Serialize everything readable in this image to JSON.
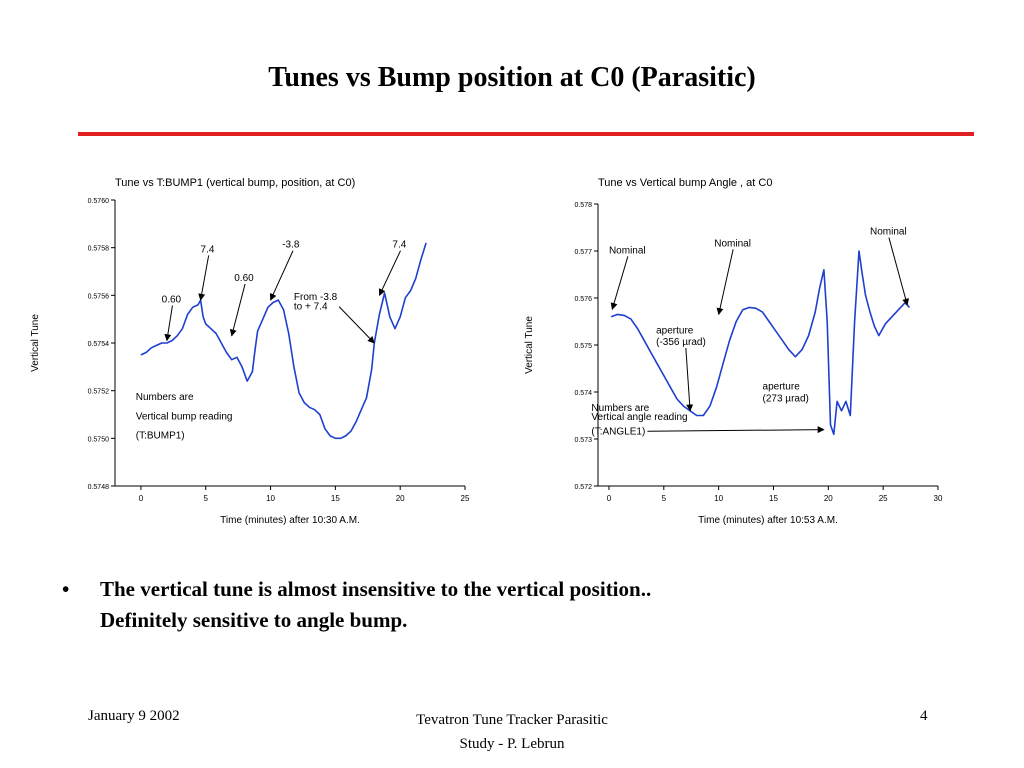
{
  "slide": {
    "title": "Tunes vs Bump position at C0 (Parasitic)",
    "accent_color": "#e02020",
    "bullet": {
      "symbol": "•",
      "line1": "The vertical tune is almost insensitive to the vertical position..",
      "line2": "Definitely sensitive to angle bump."
    },
    "footer": {
      "date": "January  9  2002",
      "center_line1": "Tevatron Tune Tracker Parasitic",
      "center_line2": "Study  - P. Lebrun",
      "page": "4"
    }
  },
  "chart_data": [
    {
      "type": "line",
      "title": "Tune vs T:BUMP1 (vertical bump, position, at C0)",
      "xlabel": "Time (minutes) after 10:30 A.M.",
      "ylabel": "Vertical Tune",
      "xlim": [
        -2,
        25
      ],
      "ylim": [
        0.5748,
        0.576
      ],
      "xticks": [
        "0",
        "5",
        "10",
        "15",
        "20",
        "25"
      ],
      "xtick_values": [
        0,
        5,
        10,
        15,
        20,
        25
      ],
      "yticks": [
        "0.5760",
        "0.5758",
        "0.5756",
        "0.5754",
        "0.5752",
        "0.5750",
        "0.5748"
      ],
      "ytick_values": [
        0.576,
        0.5758,
        0.5756,
        0.5754,
        0.5752,
        0.575,
        0.5748
      ],
      "line_color": "#1f3fd0",
      "grid": false,
      "series": [
        {
          "x": [
            0,
            0.4,
            0.8,
            1.2,
            1.6,
            2.0,
            2.4,
            2.8,
            3.2,
            3.6,
            4.0,
            4.4,
            4.6,
            4.8,
            5.0,
            5.4,
            5.8,
            6.2,
            6.6,
            7.0,
            7.4,
            7.8,
            8.2,
            8.6,
            8.8,
            9.0,
            9.4,
            9.8,
            10.2,
            10.6,
            11.0,
            11.4,
            11.8,
            12.2,
            12.6,
            13.0,
            13.4,
            13.8,
            14.2,
            14.6,
            15.0,
            15.4,
            15.8,
            16.2,
            16.6,
            17.0,
            17.4,
            17.8,
            18.0,
            18.4,
            18.8,
            19.2,
            19.6,
            20.0,
            20.4,
            20.8,
            21.2,
            21.6,
            22.0
          ],
          "y": [
            0.57535,
            0.57536,
            0.57538,
            0.57539,
            0.5754,
            0.5754,
            0.57541,
            0.57543,
            0.57546,
            0.57552,
            0.57555,
            0.57556,
            0.57558,
            0.57551,
            0.57548,
            0.57546,
            0.57544,
            0.5754,
            0.57536,
            0.57533,
            0.57534,
            0.5753,
            0.57524,
            0.57528,
            0.57537,
            0.57545,
            0.5755,
            0.57555,
            0.57557,
            0.57558,
            0.57554,
            0.57544,
            0.5753,
            0.57519,
            0.57515,
            0.57513,
            0.57512,
            0.5751,
            0.57504,
            0.57501,
            0.575,
            0.575,
            0.57501,
            0.57503,
            0.57507,
            0.57512,
            0.57517,
            0.57529,
            0.5754,
            0.57552,
            0.57561,
            0.57551,
            0.57546,
            0.57551,
            0.57559,
            0.57562,
            0.57567,
            0.57575,
            0.57582
          ]
        }
      ],
      "annotations": [
        {
          "text": "0.60",
          "x": 1.6,
          "y": 0.57557,
          "arrow_to": [
            2.0,
            0.57541
          ]
        },
        {
          "text": "7.4",
          "x": 4.6,
          "y": 0.57578,
          "arrow_to": [
            4.6,
            0.57558
          ]
        },
        {
          "text": "0.60",
          "x": 7.2,
          "y": 0.57566,
          "arrow_to": [
            7.0,
            0.57543
          ]
        },
        {
          "text": "-3.8",
          "x": 10.9,
          "y": 0.5758,
          "arrow_to": [
            10.0,
            0.57558
          ]
        },
        {
          "text": "7.4",
          "x": 19.4,
          "y": 0.5758,
          "arrow_to": [
            18.4,
            0.5756
          ]
        },
        {
          "text": "From  -3.8",
          "x": 11.8,
          "y": 0.57558,
          "arrow_to": null
        },
        {
          "text": "to + 7.4",
          "x": 11.8,
          "y": 0.57554,
          "arrow_to": [
            18.0,
            0.5754
          ]
        },
        {
          "text": "Numbers are",
          "x": -0.4,
          "y": 0.57516,
          "arrow_to": null
        },
        {
          "text": "Vertical bump reading",
          "x": -0.4,
          "y": 0.57508,
          "arrow_to": null
        },
        {
          "text": "(T:BUMP1)",
          "x": -0.4,
          "y": 0.575,
          "arrow_to": null
        }
      ]
    },
    {
      "type": "line",
      "title": "Tune vs  Vertical bump  Angle , at C0",
      "xlabel": "Time (minutes) after 10:53 A.M.",
      "ylabel": "Vertical Tune",
      "xlim": [
        -1,
        30
      ],
      "ylim": [
        0.572,
        0.578
      ],
      "xticks": [
        "0",
        "5",
        "10",
        "15",
        "20",
        "25",
        "30"
      ],
      "xtick_values": [
        0,
        5,
        10,
        15,
        20,
        25,
        30
      ],
      "yticks": [
        "0.578",
        "0.577",
        "0.576",
        "0.575",
        "0.574",
        "0.573",
        "0.572"
      ],
      "ytick_values": [
        0.578,
        0.577,
        0.576,
        0.575,
        0.574,
        0.573,
        0.572
      ],
      "line_color": "#1f3fd0",
      "grid": false,
      "series": [
        {
          "x": [
            0.2,
            0.8,
            1.4,
            2.0,
            2.6,
            3.2,
            3.8,
            4.4,
            5.0,
            5.6,
            6.2,
            6.8,
            7.4,
            8.0,
            8.6,
            9.2,
            9.8,
            10.4,
            11.0,
            11.6,
            12.2,
            12.8,
            13.4,
            14.0,
            14.6,
            15.2,
            15.8,
            16.4,
            17.0,
            17.6,
            18.2,
            18.8,
            19.2,
            19.6,
            19.9,
            20.2,
            20.5,
            20.8,
            21.2,
            21.6,
            22.0,
            22.4,
            22.8,
            23.1,
            23.4,
            23.8,
            24.2,
            24.6,
            25.2,
            25.8,
            26.4,
            27.0,
            27.4
          ],
          "y": [
            0.5756,
            0.57565,
            0.57563,
            0.57555,
            0.57535,
            0.5751,
            0.57485,
            0.5746,
            0.57435,
            0.5741,
            0.57385,
            0.5737,
            0.5736,
            0.5735,
            0.5735,
            0.5737,
            0.5741,
            0.5746,
            0.5751,
            0.5755,
            0.57575,
            0.5758,
            0.57578,
            0.5757,
            0.5755,
            0.5753,
            0.5751,
            0.5749,
            0.57475,
            0.5749,
            0.5752,
            0.5757,
            0.5762,
            0.5766,
            0.5755,
            0.5733,
            0.5731,
            0.5738,
            0.5736,
            0.5738,
            0.5735,
            0.5755,
            0.577,
            0.5765,
            0.57605,
            0.5757,
            0.5754,
            0.5752,
            0.57545,
            0.5756,
            0.57575,
            0.5759,
            0.5758
          ]
        }
      ],
      "annotations": [
        {
          "text": "Nominal",
          "x": 0,
          "y": 0.57695,
          "arrow_to": [
            0.3,
            0.57576
          ]
        },
        {
          "text": "Nominal",
          "x": 9.6,
          "y": 0.5771,
          "arrow_to": [
            10.0,
            0.57565
          ]
        },
        {
          "text": "Nominal",
          "x": 23.8,
          "y": 0.57735,
          "arrow_to": [
            27.2,
            0.57585
          ]
        },
        {
          "text": "aperture",
          "x": 4.3,
          "y": 0.57525,
          "arrow_to": null
        },
        {
          "text": "(-356 µrad)",
          "x": 4.3,
          "y": 0.575,
          "arrow_to": [
            7.4,
            0.5736
          ]
        },
        {
          "text": "aperture",
          "x": 14.0,
          "y": 0.57405,
          "arrow_to": null
        },
        {
          "text": "(273 µrad)",
          "x": 14.0,
          "y": 0.5738,
          "arrow_to": null
        },
        {
          "text": "Numbers are",
          "x": -1.6,
          "y": 0.5736,
          "arrow_to": null
        },
        {
          "text": "Vertical angle reading",
          "x": -1.6,
          "y": 0.5734,
          "arrow_to": null
        },
        {
          "text": "(T:ANGLE1)",
          "x": -1.6,
          "y": 0.5731,
          "arrow_to": [
            19.6,
            0.5732
          ]
        }
      ]
    }
  ]
}
